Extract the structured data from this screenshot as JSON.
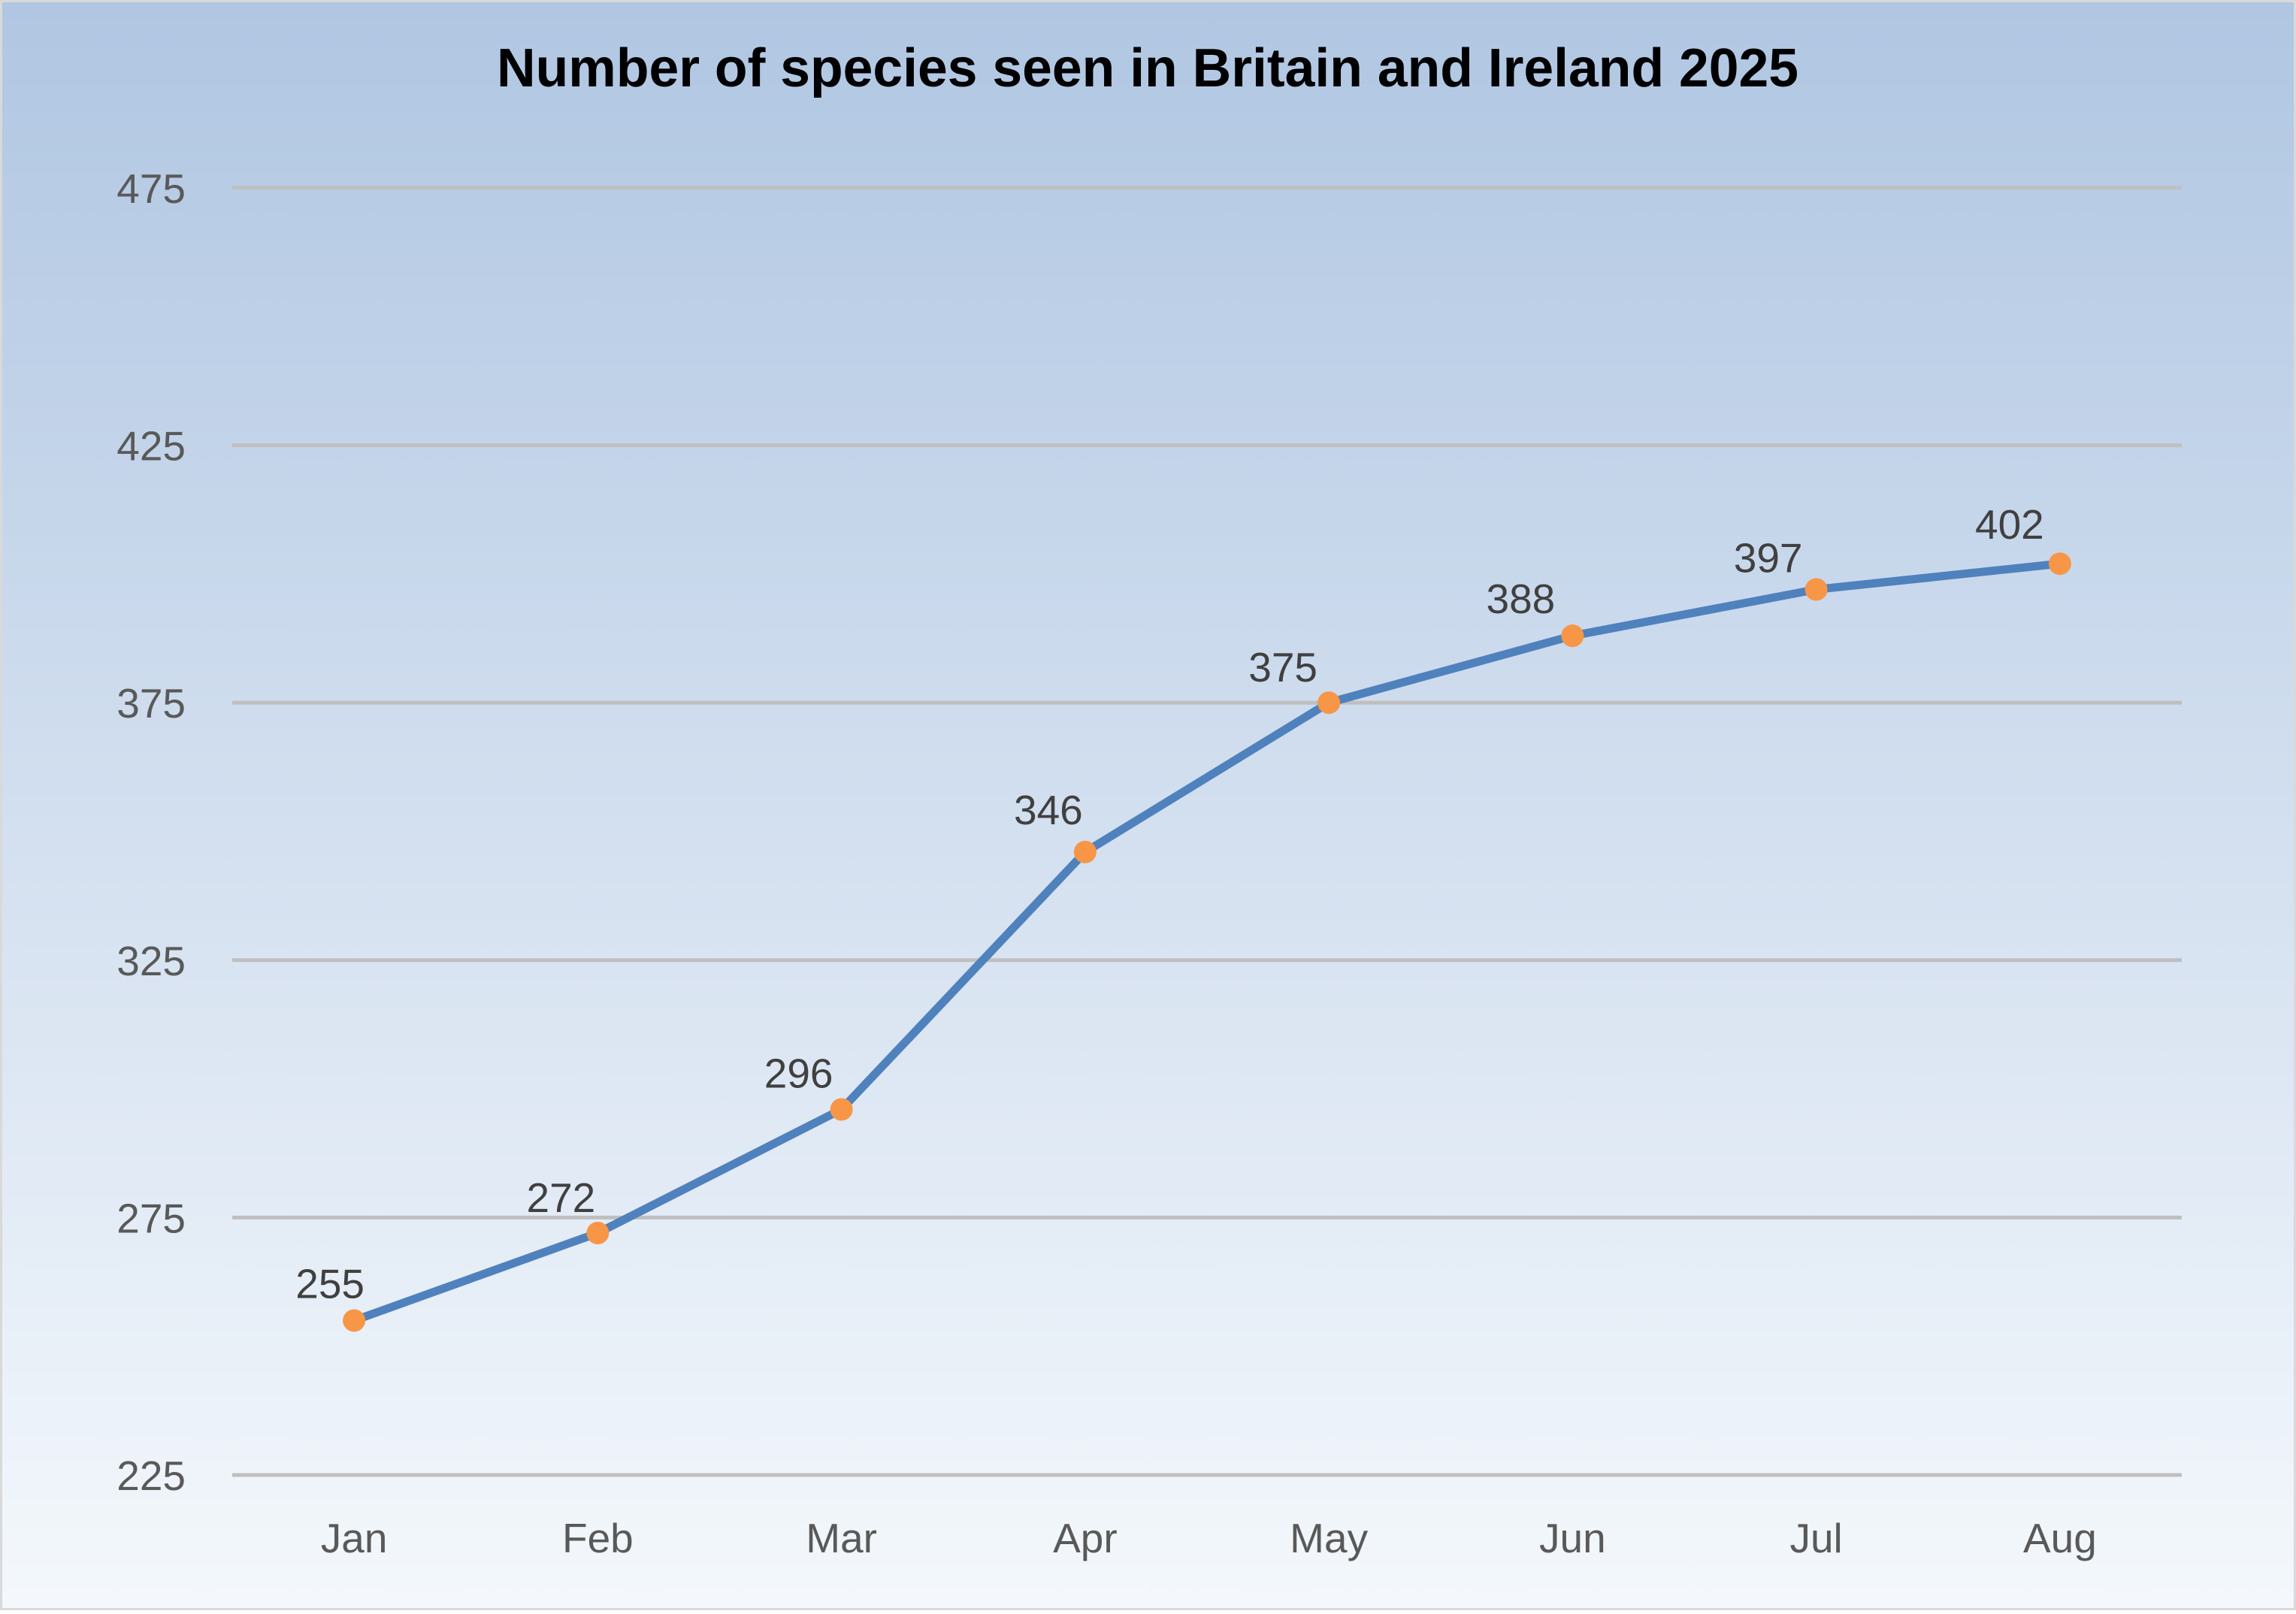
{
  "chart_data": {
    "type": "line",
    "title": "Number of species seen in Britain and Ireland 2025",
    "xlabel": "",
    "ylabel": "",
    "categories": [
      "Jan",
      "Feb",
      "Mar",
      "Apr",
      "May",
      "Jun",
      "Jul",
      "Aug"
    ],
    "series": [
      {
        "name": "Species",
        "values": [
          255,
          272,
          296,
          346,
          375,
          388,
          397,
          402
        ],
        "data_labels": [
          "255",
          "272",
          "296",
          "346",
          "375",
          "388",
          "397",
          "402"
        ],
        "line_color": "#4F81BD",
        "marker_color": "#F79646"
      }
    ],
    "ylim": [
      225,
      475
    ],
    "yticks": [
      225,
      275,
      325,
      375,
      425,
      475
    ],
    "ytick_labels": [
      "225",
      "275",
      "325",
      "375",
      "425",
      "475"
    ],
    "grid": true,
    "legend": "none",
    "colors": {
      "background_top": "#B0C6E2",
      "background_bottom": "#F4F8FC",
      "gridline": "#BFBFBF",
      "border": "#D9D9D9"
    }
  }
}
